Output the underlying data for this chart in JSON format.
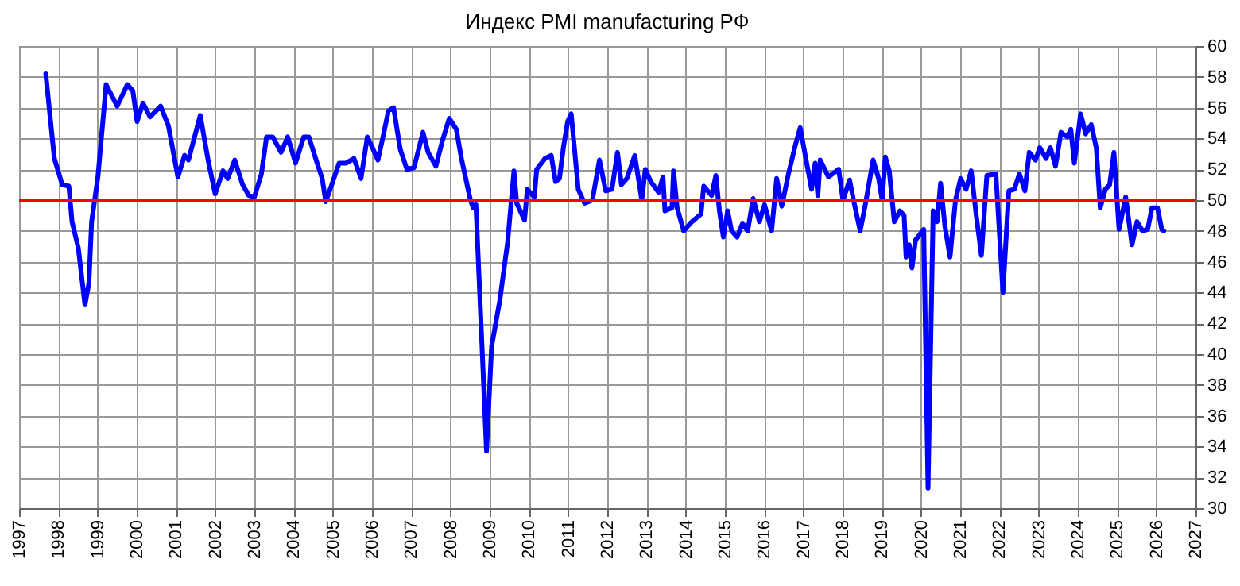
{
  "chart_data": {
    "type": "line",
    "title": "Индекс PMI manufacturing РФ",
    "x": [
      1997.68,
      1997.9,
      1998.1,
      1998.27,
      1998.35,
      1998.51,
      1998.68,
      1998.78,
      1998.85,
      1999.01,
      1999.22,
      1999.5,
      1999.76,
      1999.9,
      2000.01,
      2000.16,
      2000.34,
      2000.61,
      2000.81,
      2001.05,
      2001.22,
      2001.32,
      2001.62,
      2001.82,
      2002.0,
      2002.2,
      2002.32,
      2002.5,
      2002.7,
      2002.86,
      2003.0,
      2003.18,
      2003.31,
      2003.47,
      2003.68,
      2003.85,
      2004.05,
      2004.26,
      2004.39,
      2004.6,
      2004.73,
      2004.82,
      2004.96,
      2005.16,
      2005.34,
      2005.54,
      2005.72,
      2005.88,
      2006.01,
      2006.15,
      2006.28,
      2006.42,
      2006.55,
      2006.72,
      2006.89,
      2007.07,
      2007.3,
      2007.43,
      2007.63,
      2007.8,
      2007.97,
      2008.15,
      2008.28,
      2008.51,
      2008.58,
      2008.65,
      2008.92,
      2009.05,
      2009.26,
      2009.46,
      2009.62,
      2009.69,
      2009.89,
      2009.96,
      2010.14,
      2010.2,
      2010.41,
      2010.57,
      2010.68,
      2010.78,
      2010.88,
      2010.99,
      2011.08,
      2011.26,
      2011.42,
      2011.62,
      2011.8,
      2011.96,
      2012.12,
      2012.26,
      2012.36,
      2012.5,
      2012.7,
      2012.88,
      2012.97,
      2013.11,
      2013.31,
      2013.42,
      2013.47,
      2013.65,
      2013.69,
      2013.78,
      2013.95,
      2014.12,
      2014.39,
      2014.46,
      2014.66,
      2014.77,
      2014.86,
      2014.96,
      2015.07,
      2015.17,
      2015.31,
      2015.45,
      2015.58,
      2015.72,
      2015.88,
      2016.01,
      2016.19,
      2016.32,
      2016.45,
      2016.62,
      2016.8,
      2016.92,
      2017.07,
      2017.21,
      2017.3,
      2017.37,
      2017.43,
      2017.64,
      2017.9,
      2018.01,
      2018.18,
      2018.28,
      2018.45,
      2018.58,
      2018.78,
      2018.92,
      2019.01,
      2019.09,
      2019.19,
      2019.32,
      2019.46,
      2019.57,
      2019.62,
      2019.7,
      2019.77,
      2019.86,
      2020.07,
      2020.18,
      2020.31,
      2020.41,
      2020.5,
      2020.61,
      2020.74,
      2020.88,
      2021.01,
      2021.15,
      2021.28,
      2021.41,
      2021.54,
      2021.68,
      2021.91,
      2022.09,
      2022.24,
      2022.38,
      2022.51,
      2022.65,
      2022.76,
      2022.92,
      2023.03,
      2023.19,
      2023.3,
      2023.43,
      2023.57,
      2023.73,
      2023.82,
      2023.91,
      2024.07,
      2024.2,
      2024.34,
      2024.47,
      2024.57,
      2024.7,
      2024.81,
      2024.92,
      2025.05,
      2025.22,
      2025.38,
      2025.51,
      2025.65,
      2025.78,
      2025.89,
      2026.03,
      2026.14,
      2026.19
    ],
    "series": [
      {
        "color": "#0000ff",
        "values": [
          58.2,
          52.7,
          51.0,
          50.9,
          48.6,
          46.9,
          43.2,
          44.6,
          48.6,
          51.5,
          57.5,
          56.1,
          57.5,
          57.1,
          55.1,
          56.3,
          55.4,
          56.1,
          54.8,
          51.5,
          52.9,
          52.6,
          55.5,
          52.6,
          50.4,
          51.9,
          51.4,
          52.6,
          51.0,
          50.3,
          50.2,
          51.7,
          54.1,
          54.1,
          53.1,
          54.1,
          52.4,
          54.1,
          54.1,
          52.4,
          51.4,
          49.9,
          50.9,
          52.4,
          52.4,
          52.7,
          51.4,
          54.1,
          53.4,
          52.6,
          54.1,
          55.8,
          56.0,
          53.3,
          52.0,
          52.1,
          54.4,
          53.1,
          52.2,
          53.9,
          55.3,
          54.6,
          52.7,
          50.0,
          49.5,
          49.7,
          33.7,
          40.5,
          43.5,
          47.3,
          51.9,
          49.8,
          48.7,
          50.7,
          50.2,
          52.0,
          52.7,
          52.9,
          51.2,
          51.4,
          53.4,
          55.1,
          55.6,
          50.7,
          49.8,
          50.0,
          52.6,
          50.6,
          50.7,
          53.1,
          51.0,
          51.4,
          52.9,
          50.0,
          52.0,
          51.2,
          50.5,
          51.5,
          49.3,
          49.5,
          51.9,
          49.5,
          48.0,
          48.5,
          49.1,
          50.9,
          50.3,
          51.6,
          49.3,
          47.6,
          49.3,
          48.0,
          47.6,
          48.5,
          48.0,
          50.1,
          48.6,
          49.7,
          48.0,
          51.4,
          49.6,
          51.7,
          53.6,
          54.7,
          52.6,
          50.7,
          52.4,
          50.3,
          52.6,
          51.5,
          52.0,
          50.0,
          51.3,
          50.0,
          48.0,
          49.7,
          52.6,
          51.4,
          50.0,
          52.8,
          51.9,
          48.6,
          49.3,
          49.0,
          46.3,
          47.1,
          45.6,
          47.4,
          48.1,
          31.3,
          49.3,
          48.6,
          51.1,
          48.3,
          46.3,
          50.0,
          51.4,
          50.7,
          51.9,
          49.0,
          46.4,
          51.6,
          51.7,
          44.0,
          50.6,
          50.7,
          51.7,
          50.6,
          53.1,
          52.6,
          53.4,
          52.7,
          53.4,
          52.2,
          54.4,
          54.1,
          54.6,
          52.4,
          55.6,
          54.3,
          54.9,
          53.4,
          49.5,
          50.7,
          51.0,
          53.1,
          48.1,
          50.2,
          47.1,
          48.6,
          48.0,
          48.1,
          49.5,
          49.5,
          48.1,
          48.0
        ]
      }
    ],
    "xlim": [
      1997,
      2027
    ],
    "xticks": [
      1997,
      1998,
      1999,
      2000,
      2001,
      2002,
      2003,
      2004,
      2005,
      2006,
      2007,
      2008,
      2009,
      2010,
      2011,
      2012,
      2013,
      2014,
      2015,
      2016,
      2017,
      2018,
      2019,
      2020,
      2021,
      2022,
      2023,
      2024,
      2025,
      2026,
      2027
    ],
    "ylim": [
      30,
      60
    ],
    "yticks": [
      30,
      32,
      34,
      36,
      38,
      40,
      42,
      44,
      46,
      48,
      50,
      52,
      54,
      56,
      58,
      60
    ],
    "ref_lines": [
      {
        "axis": "y",
        "value": 50,
        "color": "#ff0000"
      }
    ],
    "grid": true,
    "line_style": "solid",
    "marker": "none"
  }
}
